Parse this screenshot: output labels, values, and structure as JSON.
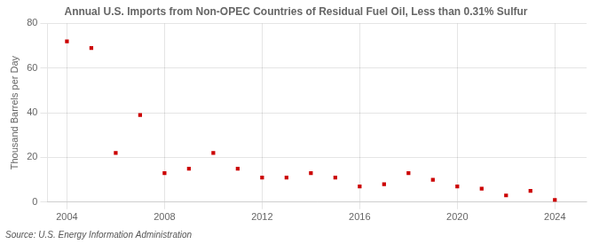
{
  "chart_data": {
    "type": "scatter",
    "title": "Annual U.S. Imports from Non-OPEC Countries of Residual Fuel Oil, Less than 0.31% Sulfur",
    "y_label": "Thousand Barrels per Day",
    "annotation": "Source: U.S. Energy Information Administration",
    "x": [
      2004,
      2005,
      2006,
      2007,
      2008,
      2009,
      2010,
      2011,
      2012,
      2013,
      2014,
      2015,
      2016,
      2017,
      2018,
      2019,
      2020,
      2021,
      2022,
      2023,
      2024
    ],
    "values": [
      72,
      69,
      22,
      39,
      13,
      15,
      22,
      15,
      11,
      11,
      13,
      11,
      7,
      8,
      13,
      10,
      7,
      6,
      3,
      5,
      1
    ],
    "color": "#cc0000",
    "marker": "square",
    "xlim": [
      2003.2,
      2025.3
    ],
    "xticks": [
      2004,
      2008,
      2012,
      2016,
      2020,
      2024
    ],
    "ylim": [
      0,
      80
    ],
    "yticks": [
      0,
      20,
      40,
      60,
      80
    ],
    "grid": true
  }
}
